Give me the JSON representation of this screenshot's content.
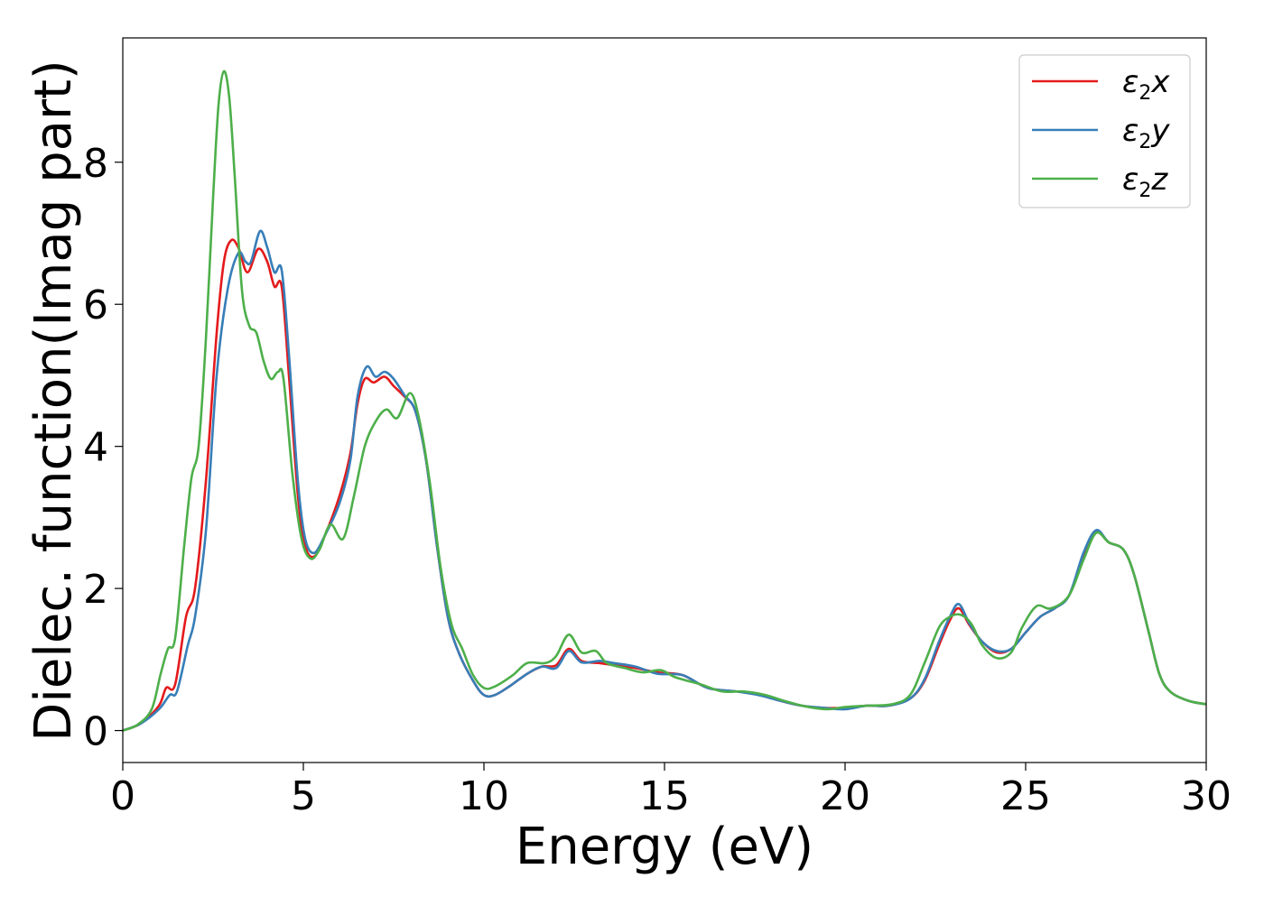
{
  "chart_data": {
    "type": "line",
    "title": "",
    "xlabel": "Energy (eV)",
    "ylabel": "Dielec. function(Imag part)",
    "xlim": [
      0,
      30
    ],
    "ylim": [
      -0.45,
      9.75
    ],
    "xticks": [
      0,
      5,
      10,
      15,
      20,
      25,
      30
    ],
    "yticks": [
      0,
      2,
      4,
      6,
      8
    ],
    "grid": false,
    "legend_position": "top-right",
    "series": [
      {
        "name": "ε2x",
        "color": "#e41a1c",
        "points": [
          [
            0,
            0
          ],
          [
            0.5,
            0.1
          ],
          [
            1.0,
            0.35
          ],
          [
            1.2,
            0.6
          ],
          [
            1.45,
            0.65
          ],
          [
            1.75,
            1.6
          ],
          [
            2.0,
            2.0
          ],
          [
            2.3,
            3.5
          ],
          [
            2.6,
            5.6
          ],
          [
            2.8,
            6.6
          ],
          [
            3.0,
            6.9
          ],
          [
            3.2,
            6.8
          ],
          [
            3.45,
            6.45
          ],
          [
            3.75,
            6.78
          ],
          [
            4.0,
            6.6
          ],
          [
            4.2,
            6.25
          ],
          [
            4.4,
            6.25
          ],
          [
            4.6,
            5.0
          ],
          [
            4.85,
            3.3
          ],
          [
            5.05,
            2.6
          ],
          [
            5.3,
            2.45
          ],
          [
            5.6,
            2.75
          ],
          [
            6.0,
            3.3
          ],
          [
            6.3,
            3.9
          ],
          [
            6.5,
            4.6
          ],
          [
            6.7,
            4.95
          ],
          [
            6.95,
            4.9
          ],
          [
            7.25,
            4.98
          ],
          [
            7.5,
            4.85
          ],
          [
            7.8,
            4.7
          ],
          [
            8.1,
            4.5
          ],
          [
            8.4,
            3.8
          ],
          [
            8.7,
            2.6
          ],
          [
            9.0,
            1.6
          ],
          [
            9.3,
            1.1
          ],
          [
            9.7,
            0.7
          ],
          [
            10.0,
            0.5
          ],
          [
            10.3,
            0.5
          ],
          [
            10.7,
            0.62
          ],
          [
            11.2,
            0.8
          ],
          [
            11.6,
            0.9
          ],
          [
            12.0,
            0.92
          ],
          [
            12.35,
            1.15
          ],
          [
            12.7,
            0.98
          ],
          [
            13.2,
            0.95
          ],
          [
            13.6,
            0.92
          ],
          [
            14.2,
            0.88
          ],
          [
            14.8,
            0.82
          ],
          [
            15.5,
            0.78
          ],
          [
            16.2,
            0.6
          ],
          [
            17.0,
            0.55
          ],
          [
            17.6,
            0.52
          ],
          [
            18.2,
            0.42
          ],
          [
            18.8,
            0.35
          ],
          [
            19.4,
            0.32
          ],
          [
            20.0,
            0.32
          ],
          [
            20.6,
            0.35
          ],
          [
            21.2,
            0.35
          ],
          [
            21.8,
            0.45
          ],
          [
            22.2,
            0.7
          ],
          [
            22.6,
            1.2
          ],
          [
            22.9,
            1.55
          ],
          [
            23.15,
            1.72
          ],
          [
            23.45,
            1.48
          ],
          [
            23.8,
            1.25
          ],
          [
            24.2,
            1.1
          ],
          [
            24.6,
            1.15
          ],
          [
            25.0,
            1.38
          ],
          [
            25.4,
            1.6
          ],
          [
            25.8,
            1.72
          ],
          [
            26.2,
            1.9
          ],
          [
            26.6,
            2.45
          ],
          [
            26.95,
            2.8
          ],
          [
            27.3,
            2.65
          ],
          [
            27.7,
            2.55
          ],
          [
            28.0,
            2.2
          ],
          [
            28.4,
            1.4
          ],
          [
            28.7,
            0.8
          ],
          [
            29.0,
            0.55
          ],
          [
            29.5,
            0.42
          ],
          [
            30,
            0.37
          ]
        ]
      },
      {
        "name": "ε2y",
        "color": "#377eb8",
        "points": [
          [
            0,
            0
          ],
          [
            0.5,
            0.1
          ],
          [
            1.0,
            0.3
          ],
          [
            1.3,
            0.5
          ],
          [
            1.5,
            0.55
          ],
          [
            1.8,
            1.2
          ],
          [
            2.0,
            1.6
          ],
          [
            2.3,
            2.8
          ],
          [
            2.6,
            5.0
          ],
          [
            2.9,
            6.2
          ],
          [
            3.2,
            6.72
          ],
          [
            3.4,
            6.6
          ],
          [
            3.55,
            6.6
          ],
          [
            3.8,
            7.03
          ],
          [
            4.0,
            6.8
          ],
          [
            4.2,
            6.45
          ],
          [
            4.4,
            6.48
          ],
          [
            4.6,
            5.3
          ],
          [
            4.85,
            3.5
          ],
          [
            5.05,
            2.7
          ],
          [
            5.3,
            2.5
          ],
          [
            5.6,
            2.75
          ],
          [
            6.0,
            3.2
          ],
          [
            6.3,
            3.8
          ],
          [
            6.5,
            4.7
          ],
          [
            6.75,
            5.12
          ],
          [
            7.0,
            4.98
          ],
          [
            7.25,
            5.05
          ],
          [
            7.5,
            4.95
          ],
          [
            7.8,
            4.72
          ],
          [
            8.1,
            4.5
          ],
          [
            8.4,
            3.8
          ],
          [
            8.7,
            2.6
          ],
          [
            9.0,
            1.6
          ],
          [
            9.3,
            1.1
          ],
          [
            9.7,
            0.7
          ],
          [
            10.0,
            0.5
          ],
          [
            10.3,
            0.5
          ],
          [
            10.7,
            0.62
          ],
          [
            11.2,
            0.8
          ],
          [
            11.6,
            0.9
          ],
          [
            12.0,
            0.88
          ],
          [
            12.35,
            1.12
          ],
          [
            12.7,
            0.96
          ],
          [
            13.2,
            0.98
          ],
          [
            13.6,
            0.95
          ],
          [
            14.2,
            0.9
          ],
          [
            14.8,
            0.8
          ],
          [
            15.5,
            0.78
          ],
          [
            16.2,
            0.6
          ],
          [
            17.0,
            0.55
          ],
          [
            17.6,
            0.5
          ],
          [
            18.2,
            0.42
          ],
          [
            18.8,
            0.35
          ],
          [
            19.4,
            0.32
          ],
          [
            20.0,
            0.3
          ],
          [
            20.6,
            0.35
          ],
          [
            21.2,
            0.35
          ],
          [
            21.8,
            0.45
          ],
          [
            22.2,
            0.72
          ],
          [
            22.6,
            1.25
          ],
          [
            22.9,
            1.6
          ],
          [
            23.15,
            1.78
          ],
          [
            23.45,
            1.5
          ],
          [
            23.8,
            1.25
          ],
          [
            24.2,
            1.12
          ],
          [
            24.6,
            1.15
          ],
          [
            25.0,
            1.38
          ],
          [
            25.4,
            1.6
          ],
          [
            25.8,
            1.72
          ],
          [
            26.2,
            1.9
          ],
          [
            26.6,
            2.5
          ],
          [
            26.95,
            2.82
          ],
          [
            27.3,
            2.65
          ],
          [
            27.7,
            2.55
          ],
          [
            28.0,
            2.2
          ],
          [
            28.4,
            1.4
          ],
          [
            28.7,
            0.8
          ],
          [
            29.0,
            0.55
          ],
          [
            29.5,
            0.42
          ],
          [
            30,
            0.37
          ]
        ]
      },
      {
        "name": "ε2z",
        "color": "#4daf4a",
        "points": [
          [
            0,
            0
          ],
          [
            0.4,
            0.08
          ],
          [
            0.8,
            0.3
          ],
          [
            1.05,
            0.8
          ],
          [
            1.25,
            1.15
          ],
          [
            1.45,
            1.3
          ],
          [
            1.7,
            2.6
          ],
          [
            1.9,
            3.55
          ],
          [
            2.1,
            4.0
          ],
          [
            2.3,
            5.5
          ],
          [
            2.5,
            7.5
          ],
          [
            2.65,
            8.8
          ],
          [
            2.8,
            9.28
          ],
          [
            2.95,
            8.9
          ],
          [
            3.1,
            7.8
          ],
          [
            3.3,
            6.2
          ],
          [
            3.5,
            5.7
          ],
          [
            3.7,
            5.6
          ],
          [
            3.9,
            5.2
          ],
          [
            4.1,
            4.95
          ],
          [
            4.3,
            5.05
          ],
          [
            4.45,
            4.95
          ],
          [
            4.7,
            3.6
          ],
          [
            4.95,
            2.7
          ],
          [
            5.2,
            2.42
          ],
          [
            5.45,
            2.55
          ],
          [
            5.75,
            2.9
          ],
          [
            6.1,
            2.7
          ],
          [
            6.4,
            3.3
          ],
          [
            6.7,
            4.0
          ],
          [
            7.0,
            4.35
          ],
          [
            7.3,
            4.52
          ],
          [
            7.6,
            4.4
          ],
          [
            7.95,
            4.75
          ],
          [
            8.2,
            4.4
          ],
          [
            8.5,
            3.5
          ],
          [
            8.8,
            2.3
          ],
          [
            9.1,
            1.5
          ],
          [
            9.4,
            1.15
          ],
          [
            9.7,
            0.78
          ],
          [
            10.0,
            0.6
          ],
          [
            10.3,
            0.62
          ],
          [
            10.8,
            0.78
          ],
          [
            11.2,
            0.95
          ],
          [
            11.7,
            0.95
          ],
          [
            12.0,
            1.05
          ],
          [
            12.35,
            1.35
          ],
          [
            12.7,
            1.1
          ],
          [
            13.1,
            1.12
          ],
          [
            13.4,
            0.95
          ],
          [
            13.9,
            0.88
          ],
          [
            14.4,
            0.82
          ],
          [
            14.9,
            0.85
          ],
          [
            15.3,
            0.75
          ],
          [
            16.0,
            0.65
          ],
          [
            16.6,
            0.55
          ],
          [
            17.2,
            0.55
          ],
          [
            17.8,
            0.5
          ],
          [
            18.3,
            0.42
          ],
          [
            18.9,
            0.34
          ],
          [
            19.5,
            0.3
          ],
          [
            20.0,
            0.33
          ],
          [
            20.6,
            0.35
          ],
          [
            21.3,
            0.37
          ],
          [
            21.8,
            0.5
          ],
          [
            22.2,
            0.95
          ],
          [
            22.6,
            1.45
          ],
          [
            22.9,
            1.6
          ],
          [
            23.2,
            1.63
          ],
          [
            23.5,
            1.5
          ],
          [
            23.8,
            1.2
          ],
          [
            24.2,
            1.02
          ],
          [
            24.6,
            1.1
          ],
          [
            24.9,
            1.45
          ],
          [
            25.3,
            1.75
          ],
          [
            25.7,
            1.72
          ],
          [
            26.2,
            1.9
          ],
          [
            26.6,
            2.4
          ],
          [
            26.95,
            2.78
          ],
          [
            27.3,
            2.65
          ],
          [
            27.7,
            2.55
          ],
          [
            28.0,
            2.2
          ],
          [
            28.4,
            1.4
          ],
          [
            28.7,
            0.8
          ],
          [
            29.0,
            0.55
          ],
          [
            29.5,
            0.42
          ],
          [
            30,
            0.37
          ]
        ]
      }
    ]
  }
}
